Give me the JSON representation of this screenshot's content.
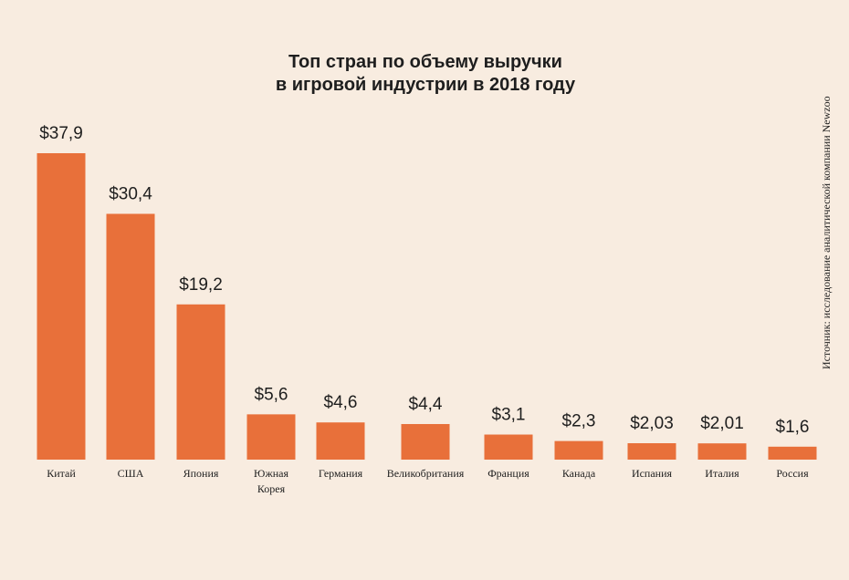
{
  "chart_data": {
    "type": "bar",
    "title_lines": [
      "Топ стран по объему выручки",
      "в игровой индустрии в 2018 году"
    ],
    "source": "Источник: исследование аналитической компании Newzoo",
    "categories": [
      [
        "Китай"
      ],
      [
        "США"
      ],
      [
        "Япония"
      ],
      [
        "Южная",
        "Корея"
      ],
      [
        "Германия"
      ],
      [
        "Великобритания"
      ],
      [
        "Франция"
      ],
      [
        "Канада"
      ],
      [
        "Испания"
      ],
      [
        "Италия"
      ],
      [
        "Россия"
      ]
    ],
    "values": [
      37.9,
      30.4,
      19.2,
      5.6,
      4.6,
      4.4,
      3.1,
      2.3,
      2.03,
      2.01,
      1.6
    ],
    "value_labels": [
      "$37,9",
      "$30,4",
      "$19,2",
      "$5,6",
      "$4,6",
      "$4,4",
      "$3,1",
      "$2,3",
      "$2,03",
      "$2,01",
      "$1,6"
    ],
    "xlabel": "",
    "ylabel": "",
    "ylim": [
      0,
      37.9
    ],
    "grid": false,
    "legend": "none",
    "bar_color": "#e8703a",
    "background_color": "#f8ece0",
    "text_color": "#1e1e1e"
  }
}
